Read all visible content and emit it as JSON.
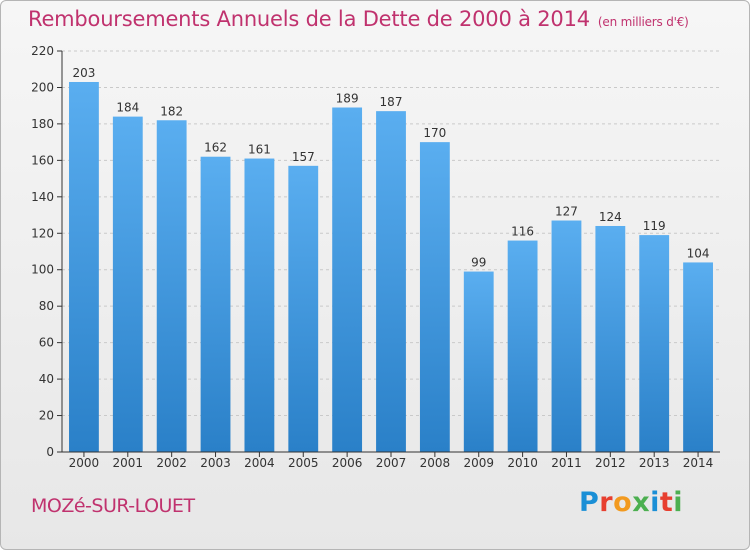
{
  "header": {
    "title": "Remboursements Annuels de la Dette de 2000 à 2014",
    "subtitle": "(en milliers d'€)"
  },
  "footer": {
    "commune": "MOZé-SUR-LOUET",
    "logo": "Proxiti"
  },
  "colors": {
    "title": "#c0326e",
    "bar_top": "#5aaef0",
    "bar_bottom": "#2a80c8",
    "logo": [
      "#1a8fd6",
      "#e73f2f",
      "#f29a1f",
      "#4caf50",
      "#1a8fd6",
      "#e73f2f",
      "#4caf50"
    ]
  },
  "chart_data": {
    "type": "bar",
    "categories": [
      "2000",
      "2001",
      "2002",
      "2003",
      "2004",
      "2005",
      "2006",
      "2007",
      "2008",
      "2009",
      "2010",
      "2011",
      "2012",
      "2013",
      "2014"
    ],
    "values": [
      203,
      184,
      182,
      162,
      161,
      157,
      189,
      187,
      170,
      99,
      116,
      127,
      124,
      119,
      104
    ],
    "ylim": [
      0,
      220
    ],
    "yticks": [
      0,
      20,
      40,
      60,
      80,
      100,
      120,
      140,
      160,
      180,
      200,
      220
    ],
    "grid": true,
    "data_labels": true
  }
}
